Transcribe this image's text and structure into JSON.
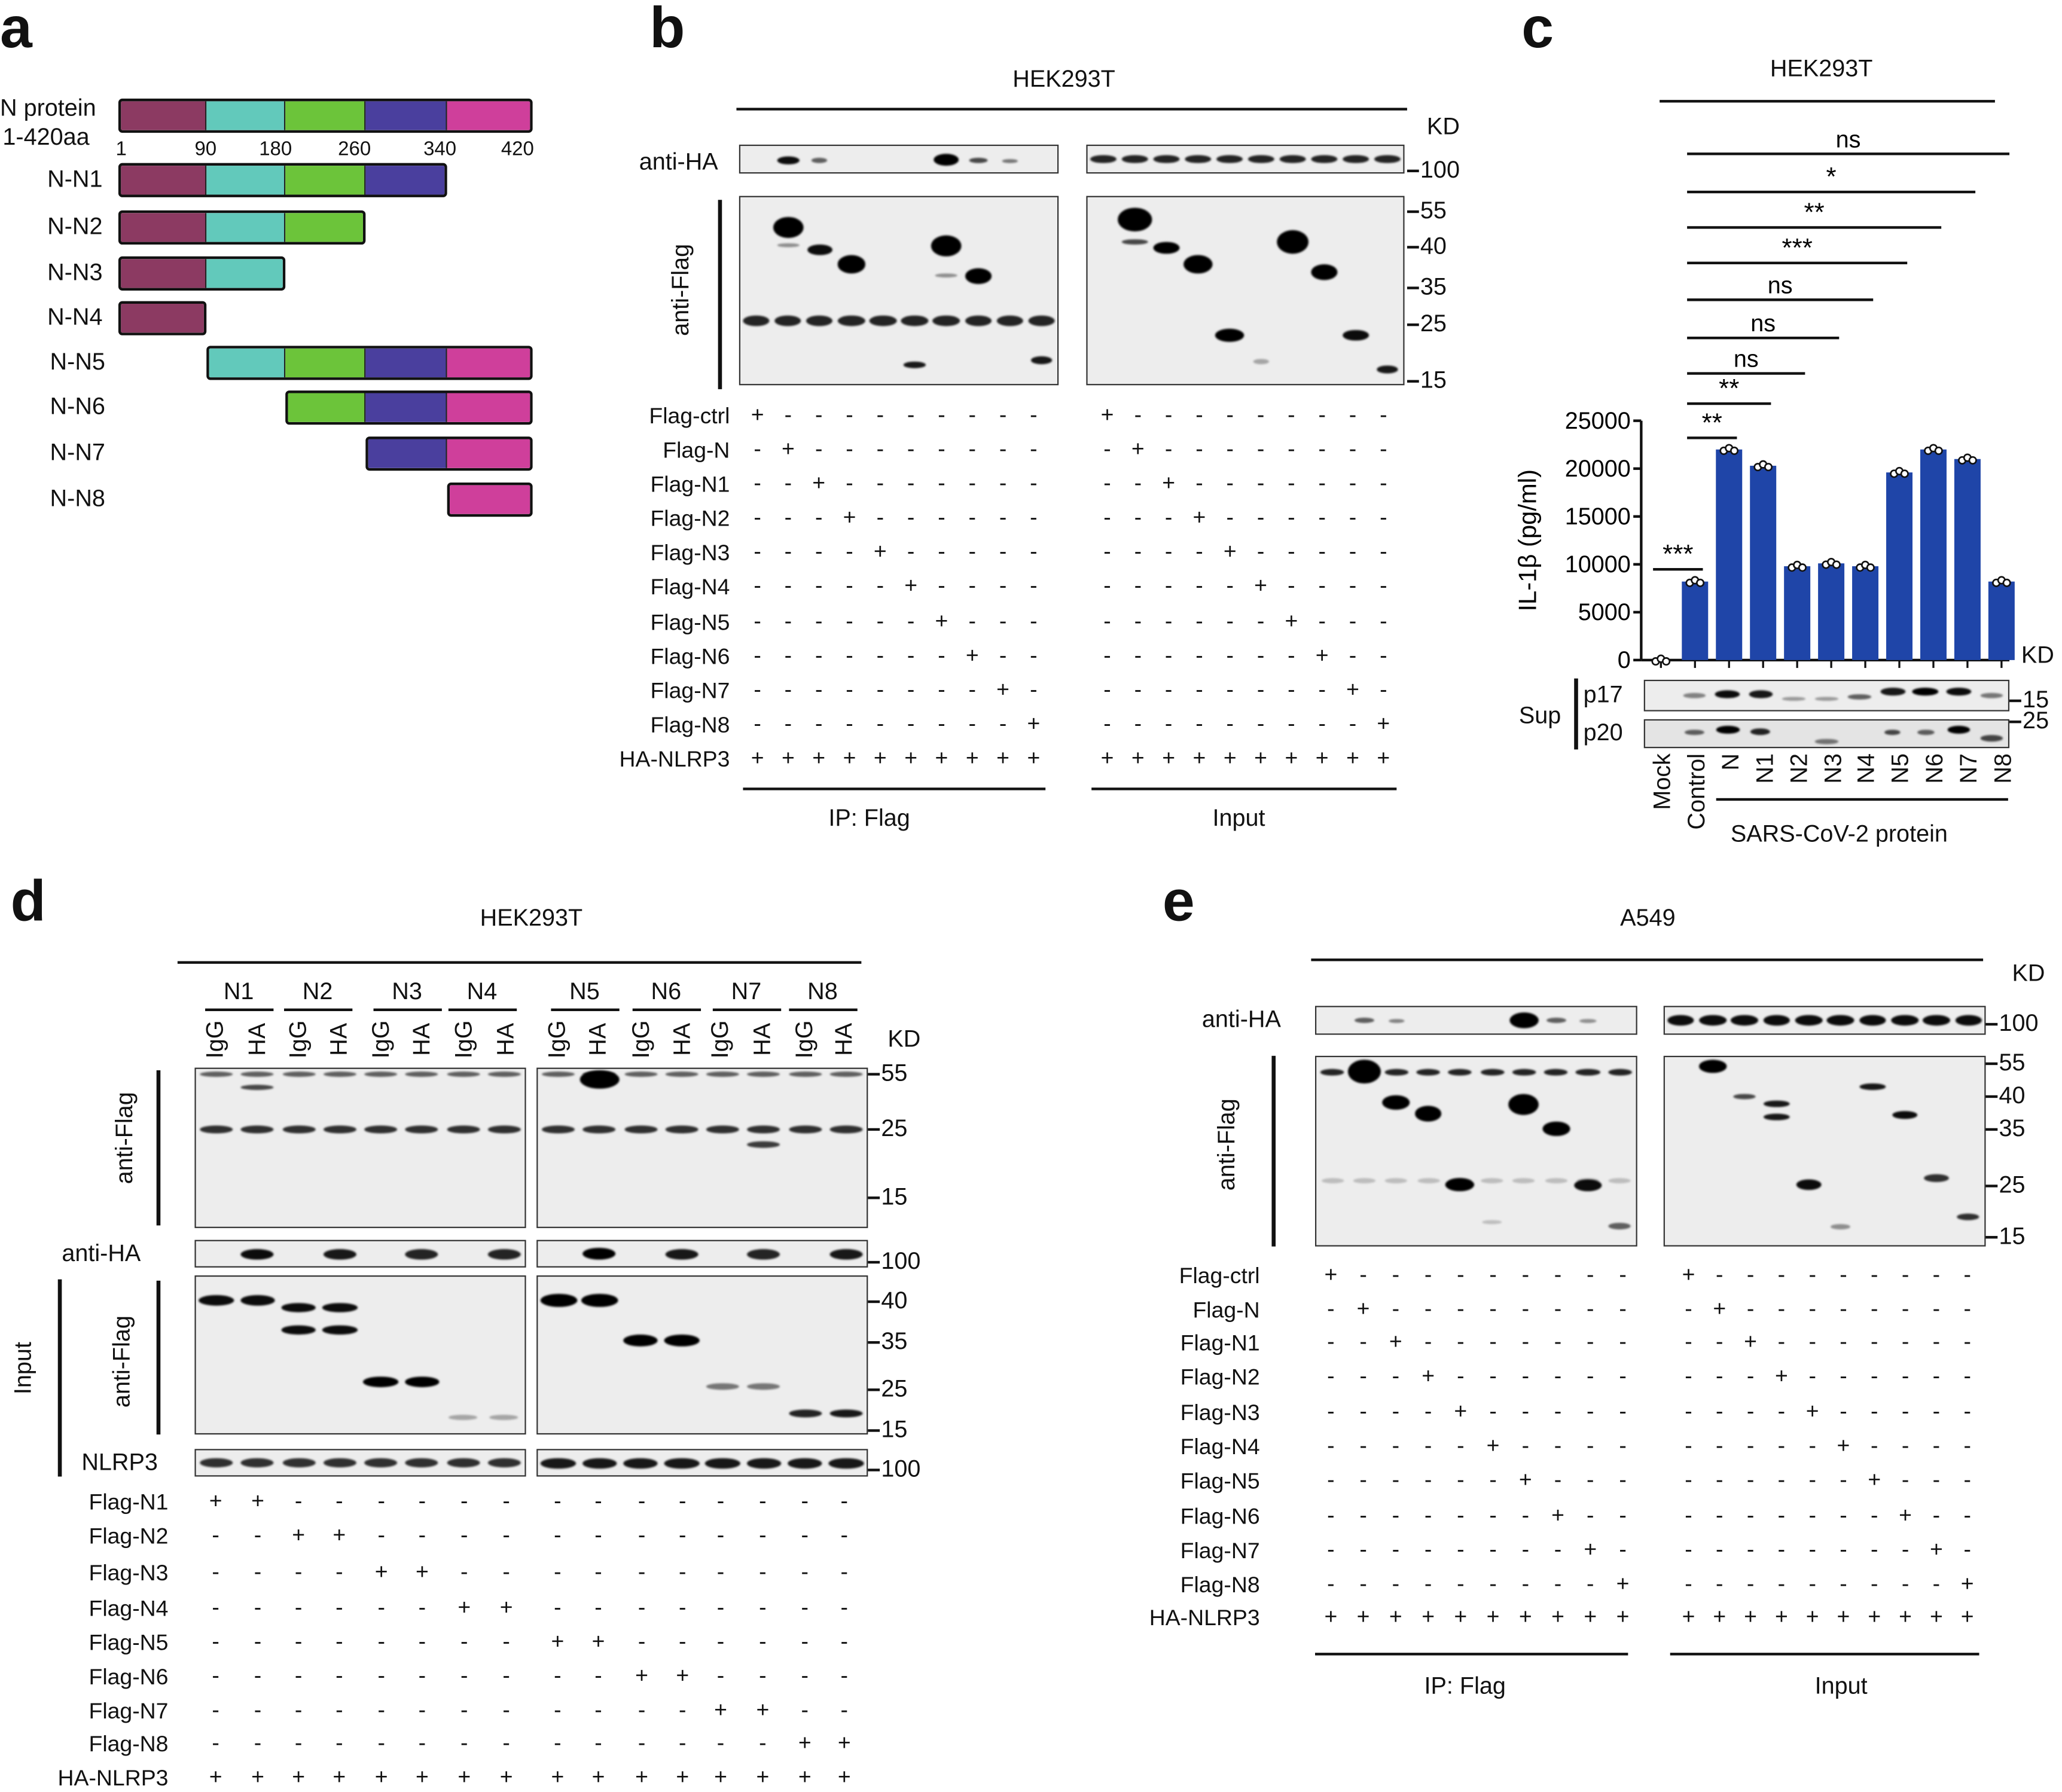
{
  "panel_labels": {
    "a": "a",
    "b": "b",
    "c": "c",
    "d": "d",
    "e": "e"
  },
  "panel_a": {
    "full_label": "N protein",
    "full_range": "1-420aa",
    "ticks": [
      "1",
      "90",
      "180",
      "260",
      "340",
      "420"
    ],
    "domain_colors": [
      "#8c3a62",
      "#62c9bb",
      "#6cc43a",
      "#4a3f9e",
      "#cf3f9b"
    ],
    "constructs": [
      {
        "name": "N-N1",
        "domains": [
          0,
          1,
          2,
          3
        ]
      },
      {
        "name": "N-N2",
        "domains": [
          0,
          1,
          2
        ]
      },
      {
        "name": "N-N3",
        "domains": [
          0,
          1
        ]
      },
      {
        "name": "N-N4",
        "domains": [
          0
        ]
      },
      {
        "name": "N-N5",
        "domains": [
          1,
          2,
          3,
          4
        ]
      },
      {
        "name": "N-N6",
        "domains": [
          2,
          3,
          4
        ]
      },
      {
        "name": "N-N7",
        "domains": [
          3,
          4
        ]
      },
      {
        "name": "N-N8",
        "domains": [
          4
        ]
      }
    ]
  },
  "panel_b": {
    "cell_line": "HEK293T",
    "kd": "KD",
    "anti_ha": "anti-HA",
    "anti_flag": "anti-Flag",
    "mw_ha": "100",
    "mw_flag": [
      "55",
      "40",
      "35",
      "25",
      "15"
    ],
    "rows": [
      {
        "label": "Flag-ctrl",
        "ip": "+ - - - - - - - - -",
        "input": "+ - - - - - - - - -"
      },
      {
        "label": "Flag-N",
        "ip": "- + - - - - - - - -",
        "input": "- + - - - - - - - -"
      },
      {
        "label": "Flag-N1",
        "ip": "- - + - - - - - - -",
        "input": "- - + - - - - - - -"
      },
      {
        "label": "Flag-N2",
        "ip": "- - - + - - - - - -",
        "input": "- - - + - - - - - -"
      },
      {
        "label": "Flag-N3",
        "ip": "- - - - + - - - - -",
        "input": "- - - - + - - - - -"
      },
      {
        "label": "Flag-N4",
        "ip": "- - - - - + - - - -",
        "input": "- - - - - + - - - -"
      },
      {
        "label": "Flag-N5",
        "ip": "- - - - - - + - - -",
        "input": "- - - - - - + - - -"
      },
      {
        "label": "Flag-N6",
        "ip": "- - - - - - - + - -",
        "input": "- - - - - - - + - -"
      },
      {
        "label": "Flag-N7",
        "ip": "- - - - - - - - + -",
        "input": "- - - - - - - - + -"
      },
      {
        "label": "Flag-N8",
        "ip": "- - - - - - - - - +",
        "input": "- - - - - - - - - +"
      },
      {
        "label": "HA-NLRP3",
        "ip": "+ + + + + + + + + +",
        "input": "+ + + + + + + + + +"
      }
    ],
    "footer_ip": "IP: Flag",
    "footer_input": "Input"
  },
  "panel_c": {
    "cell_line": "HEK293T",
    "kd": "KD",
    "sup": "Sup",
    "p17": "p17",
    "p20": "p20",
    "mw_p17": "15",
    "mw_p20": "25",
    "group_label": "SARS-CoV-2 protein",
    "bar_color": "#1f45a8"
  },
  "chart_data": {
    "type": "bar",
    "categories": [
      "Mock",
      "Control",
      "N",
      "N1",
      "N2",
      "N3",
      "N4",
      "N5",
      "N6",
      "N7",
      "N8"
    ],
    "values": [
      0,
      8200,
      22000,
      20300,
      9800,
      10100,
      9800,
      19600,
      22000,
      21000,
      8200
    ],
    "ylabel": "IL-1β (pg/ml)",
    "ylim": [
      0,
      25000
    ],
    "yticks": [
      "0",
      "5000",
      "10000",
      "15000",
      "20000",
      "25000"
    ],
    "grid": false,
    "annotations": [
      {
        "from": "Control",
        "to": "N8",
        "label": "ns"
      },
      {
        "from": "Control",
        "to": "N7",
        "label": "*"
      },
      {
        "from": "Control",
        "to": "N6",
        "label": "**"
      },
      {
        "from": "Control",
        "to": "N5",
        "label": "***"
      },
      {
        "from": "Control",
        "to": "N4",
        "label": "ns"
      },
      {
        "from": "Control",
        "to": "N3",
        "label": "ns"
      },
      {
        "from": "Control",
        "to": "N2",
        "label": "ns"
      },
      {
        "from": "Control",
        "to": "N1",
        "label": "**"
      },
      {
        "from": "Control",
        "to": "N",
        "label": "**"
      },
      {
        "from": "Mock",
        "to": "Control",
        "label": "***"
      }
    ]
  },
  "panel_d": {
    "cell_line": "HEK293T",
    "kd": "KD",
    "groups": [
      "N1",
      "N2",
      "N3",
      "N4",
      "N5",
      "N6",
      "N7",
      "N8"
    ],
    "lane_labels": [
      "IgG",
      "HA"
    ],
    "anti_flag": "anti-Flag",
    "anti_ha": "anti-HA",
    "input": "Input",
    "input_anti_flag": "anti-Flag",
    "nlrp3": "NLRP3",
    "mw_ip": [
      "55",
      "25",
      "15"
    ],
    "mw_ha": "100",
    "mw_input": [
      "40",
      "35",
      "25",
      "15"
    ],
    "mw_nlrp3": "100",
    "rows": [
      {
        "label": "Flag-N1",
        "signs": "+ + - - - - - - - - - - - - - -"
      },
      {
        "label": "Flag-N2",
        "signs": "- - + + - - - - - - - - - - - -"
      },
      {
        "label": "Flag-N3",
        "signs": "- - - - + + - - - - - - - - - -"
      },
      {
        "label": "Flag-N4",
        "signs": "- - - - - - + + - - - - - - - -"
      },
      {
        "label": "Flag-N5",
        "signs": "- - - - - - - - + + - - - - - -"
      },
      {
        "label": "Flag-N6",
        "signs": "- - - - - - - - - - + + - - - -"
      },
      {
        "label": "Flag-N7",
        "signs": "- - - - - - - - - - - - + + - -"
      },
      {
        "label": "Flag-N8",
        "signs": "- - - - - - - - - - - - - - + +"
      },
      {
        "label": "HA-NLRP3",
        "signs": "+ + + + + + + + + + + + + + + +"
      }
    ]
  },
  "panel_e": {
    "cell_line": "A549",
    "kd": "KD",
    "anti_ha": "anti-HA",
    "anti_flag": "anti-Flag",
    "mw_ha": "100",
    "mw_flag": [
      "55",
      "40",
      "35",
      "25",
      "15"
    ],
    "rows": [
      {
        "label": "Flag-ctrl",
        "ip": "+ - - - - - - - - -",
        "input": "+ - - - - - - - - -"
      },
      {
        "label": "Flag-N",
        "ip": "- + - - - - - - - -",
        "input": "- + - - - - - - - -"
      },
      {
        "label": "Flag-N1",
        "ip": "- - + - - - - - - -",
        "input": "- - + - - - - - - -"
      },
      {
        "label": "Flag-N2",
        "ip": "- - - + - - - - - -",
        "input": "- - - + - - - - - -"
      },
      {
        "label": "Flag-N3",
        "ip": "- - - - + - - - - -",
        "input": "- - - - + - - - - -"
      },
      {
        "label": "Flag-N4",
        "ip": "- - - - - + - - - -",
        "input": "- - - - - + - - - -"
      },
      {
        "label": "Flag-N5",
        "ip": "- - - - - - + - - -",
        "input": "- - - - - - + - - -"
      },
      {
        "label": "Flag-N6",
        "ip": "- - - - - - - + - -",
        "input": "- - - - - - - + - -"
      },
      {
        "label": "Flag-N7",
        "ip": "- - - - - - - - + -",
        "input": "- - - - - - - - + -"
      },
      {
        "label": "Flag-N8",
        "ip": "- - - - - - - - - +",
        "input": "- - - - - - - - - +"
      },
      {
        "label": "HA-NLRP3",
        "ip": "+ + + + + + + + + +",
        "input": "+ + + + + + + + + +"
      }
    ],
    "footer_ip": "IP: Flag",
    "footer_input": "Input"
  }
}
